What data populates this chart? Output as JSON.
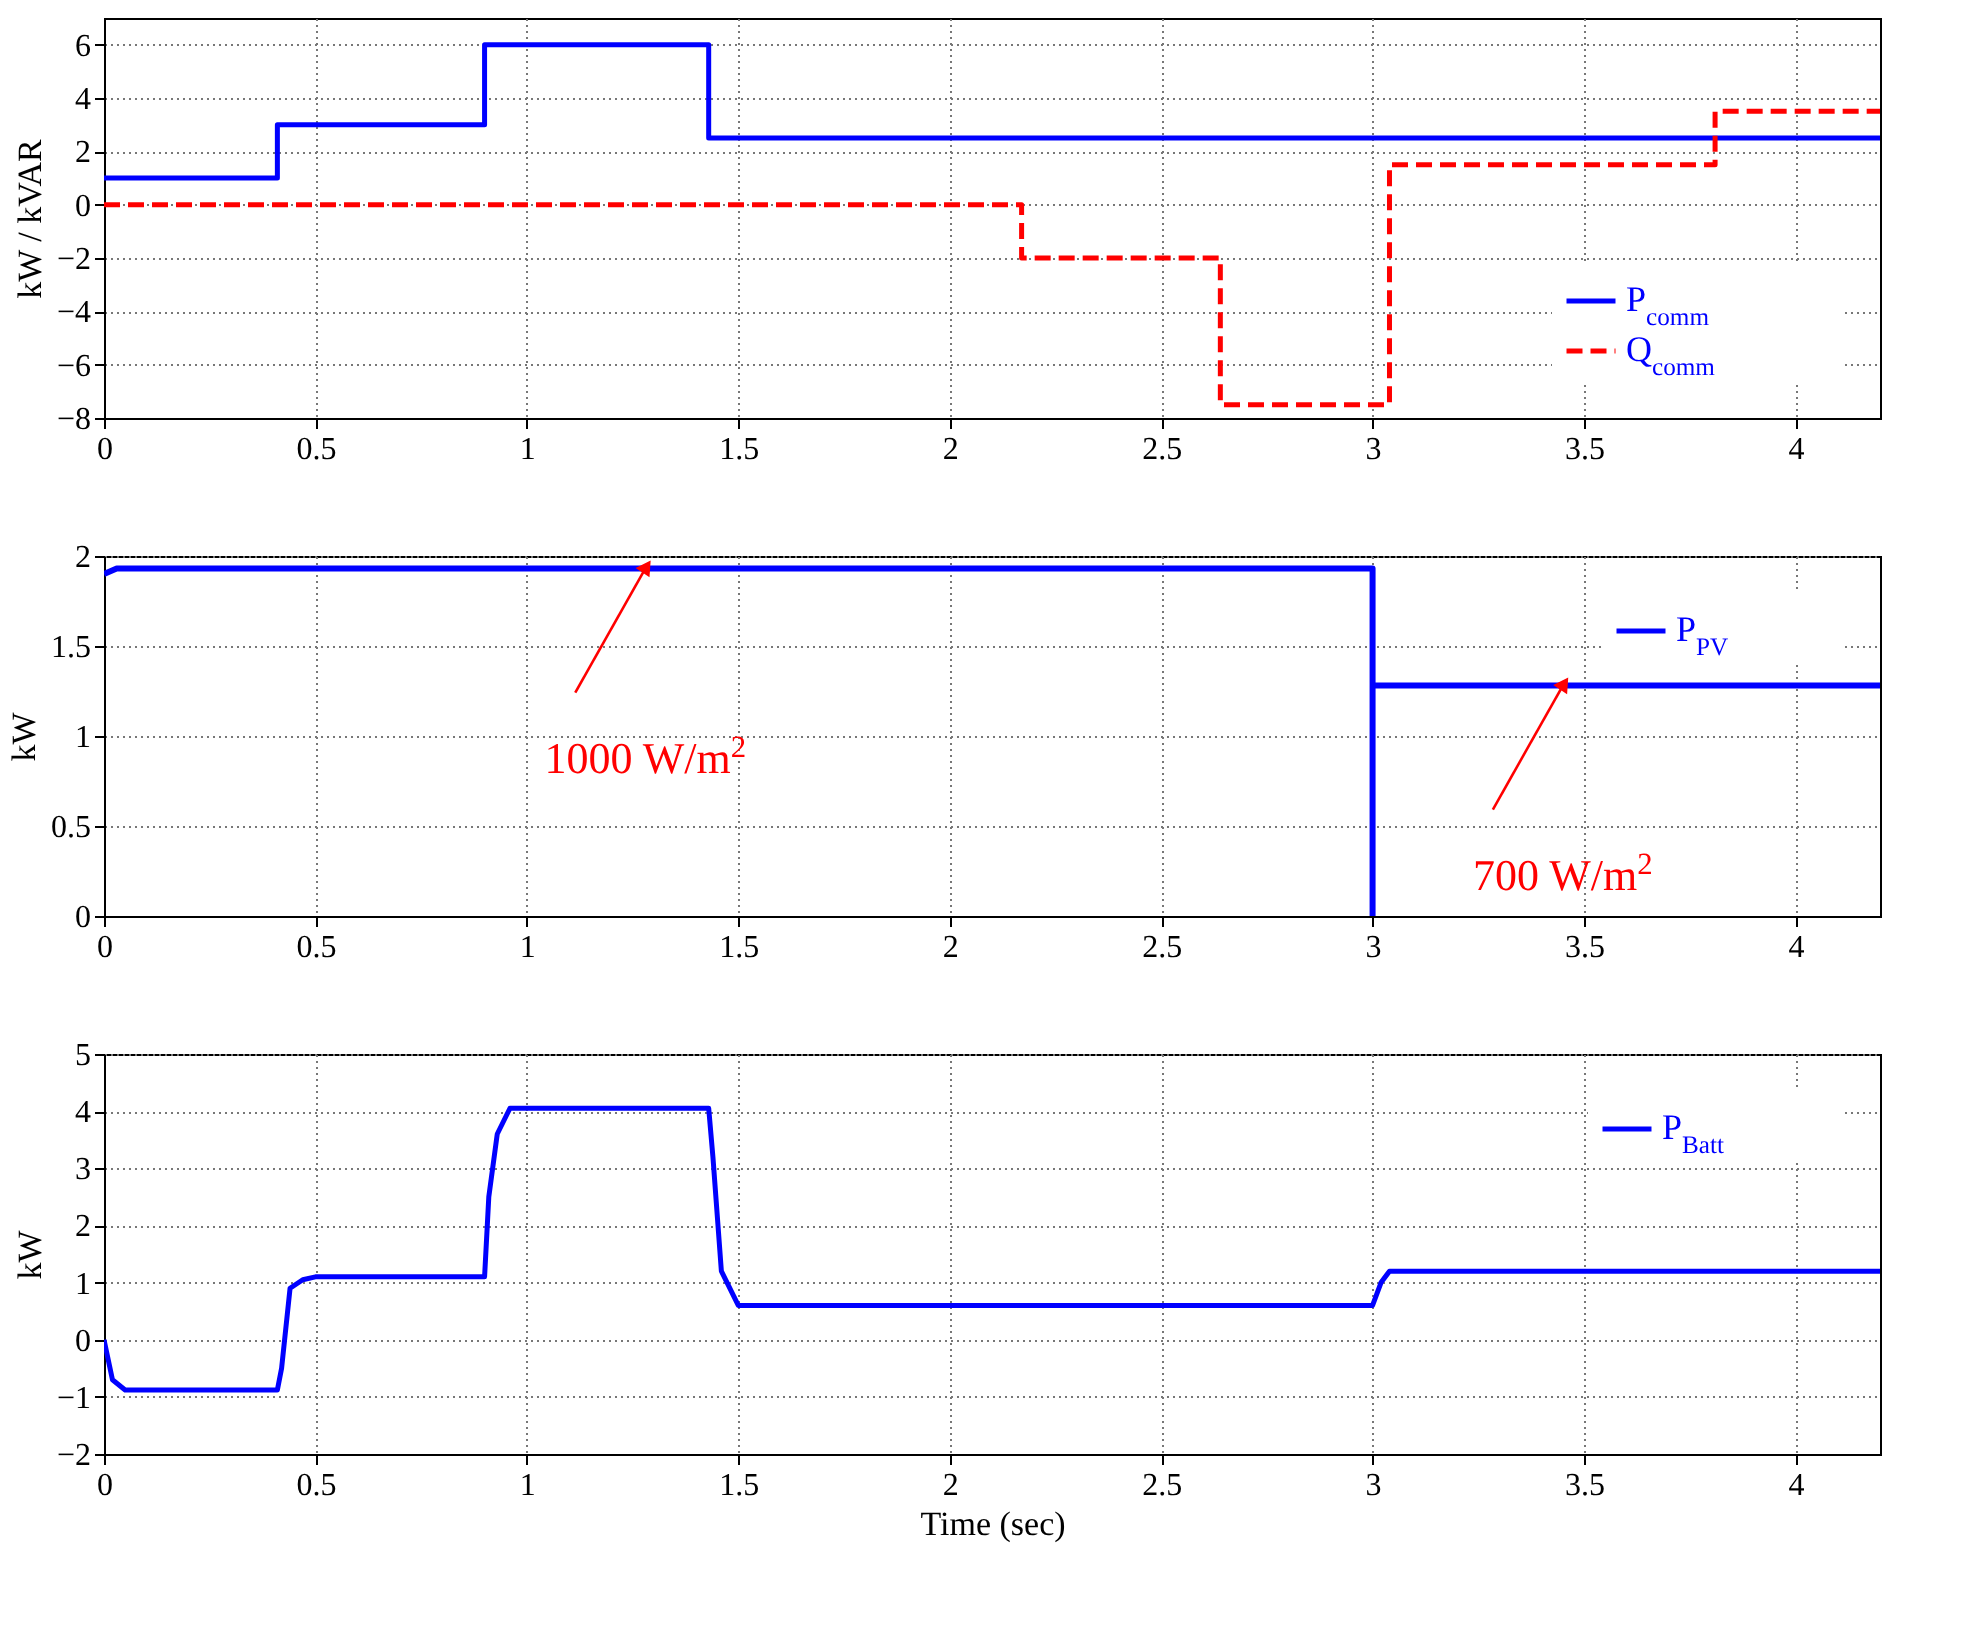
{
  "chart_data": [
    {
      "type": "step",
      "ylabel": "kW / kVAR",
      "xlim": [
        0,
        4.2
      ],
      "xticks": [
        0,
        0.5,
        1,
        1.5,
        2,
        2.5,
        3,
        3.5,
        4
      ],
      "ylim": [
        -8,
        7
      ],
      "yticks": [
        -8,
        -6,
        -4,
        -2,
        0,
        2,
        4,
        6
      ],
      "grid": true,
      "legend": "bottom right",
      "series": [
        {
          "name": "P$_{comm}$",
          "color": "#0000ff",
          "x": [
            0,
            0.41,
            0.9,
            1.43,
            4.2
          ],
          "values": [
            1,
            3,
            6,
            2.5,
            2.5
          ]
        },
        {
          "name": "Q$_{comm}$",
          "color": "#ff0000",
          "line_style": "dashed",
          "x": [
            0,
            2.17,
            2.64,
            3.04,
            3.81,
            4.2
          ],
          "values": [
            0,
            -2,
            -7.5,
            1.5,
            3.5,
            3.5
          ]
        }
      ]
    },
    {
      "type": "line",
      "ylabel": "kW",
      "xlim": [
        0,
        4.2
      ],
      "xticks": [
        0,
        0.5,
        1,
        1.5,
        2,
        2.5,
        3,
        3.5,
        4
      ],
      "ylim": [
        0,
        2
      ],
      "yticks": [
        0,
        0.5,
        1,
        1.5,
        2
      ],
      "grid": true,
      "legend": "top right",
      "annotations": [
        {
          "text": "1000 W/m$^{2}$",
          "x": 1.28,
          "y": 1.93
        },
        {
          "text": "700 W/m$^{2}$",
          "x": 3.45,
          "y": 1.28
        }
      ],
      "series": [
        {
          "name": "P$_{PV}$",
          "color": "#0000ff",
          "x": [
            0,
            0.03,
            3,
            3,
            3,
            4.2
          ],
          "values": [
            1.9,
            1.93,
            1.93,
            0,
            1.28,
            1.28
          ]
        }
      ]
    },
    {
      "type": "line",
      "xlabel": "Time (sec)",
      "ylabel": "kW",
      "xlim": [
        0,
        4.2
      ],
      "xticks": [
        0,
        0.5,
        1,
        1.5,
        2,
        2.5,
        3,
        3.5,
        4
      ],
      "ylim": [
        -2,
        5
      ],
      "yticks": [
        -2,
        -1,
        0,
        1,
        2,
        3,
        4,
        5
      ],
      "grid": true,
      "legend": "top right",
      "series": [
        {
          "name": "P$_{Batt}$",
          "color": "#0000ff",
          "x": [
            0,
            0.02,
            0.05,
            0.41,
            0.42,
            0.44,
            0.47,
            0.5,
            0.9,
            0.91,
            0.93,
            0.96,
            1.43,
            1.44,
            1.46,
            1.5,
            3.0,
            3.02,
            3.04,
            4.2
          ],
          "values": [
            0,
            -0.7,
            -0.88,
            -0.88,
            -0.5,
            0.9,
            1.05,
            1.1,
            1.1,
            2.5,
            3.6,
            4.05,
            4.05,
            3.2,
            1.2,
            0.6,
            0.6,
            1.0,
            1.2,
            1.2
          ]
        }
      ]
    }
  ]
}
